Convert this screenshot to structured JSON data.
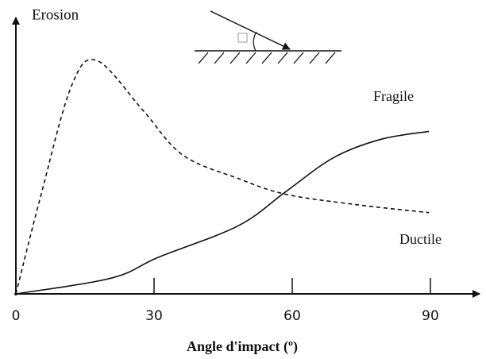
{
  "chart_data": {
    "type": "line",
    "y_label": "Erosion",
    "x_label": "Angle d'impact (º)",
    "xlim": [
      0,
      90
    ],
    "xticks": [
      0,
      30,
      60,
      90
    ],
    "ylim": [
      0,
      100
    ],
    "series": [
      {
        "name": "Fragile",
        "color": "#111111",
        "dash": false,
        "x": [
          0,
          20.7,
          31,
          48.3,
          58.6,
          69,
          79.3,
          89.7
        ],
        "values": [
          0,
          6,
          14,
          26,
          39,
          52,
          59,
          62
        ]
      },
      {
        "name": "Ductile",
        "color": "#111111",
        "dash": true,
        "x": [
          0,
          5.2,
          12,
          17.6,
          27.6,
          36.2,
          48.3,
          58.6,
          74.1,
          89.7
        ],
        "values": [
          0,
          36,
          79,
          89,
          70,
          53,
          44,
          38,
          34,
          31
        ]
      }
    ]
  }
}
